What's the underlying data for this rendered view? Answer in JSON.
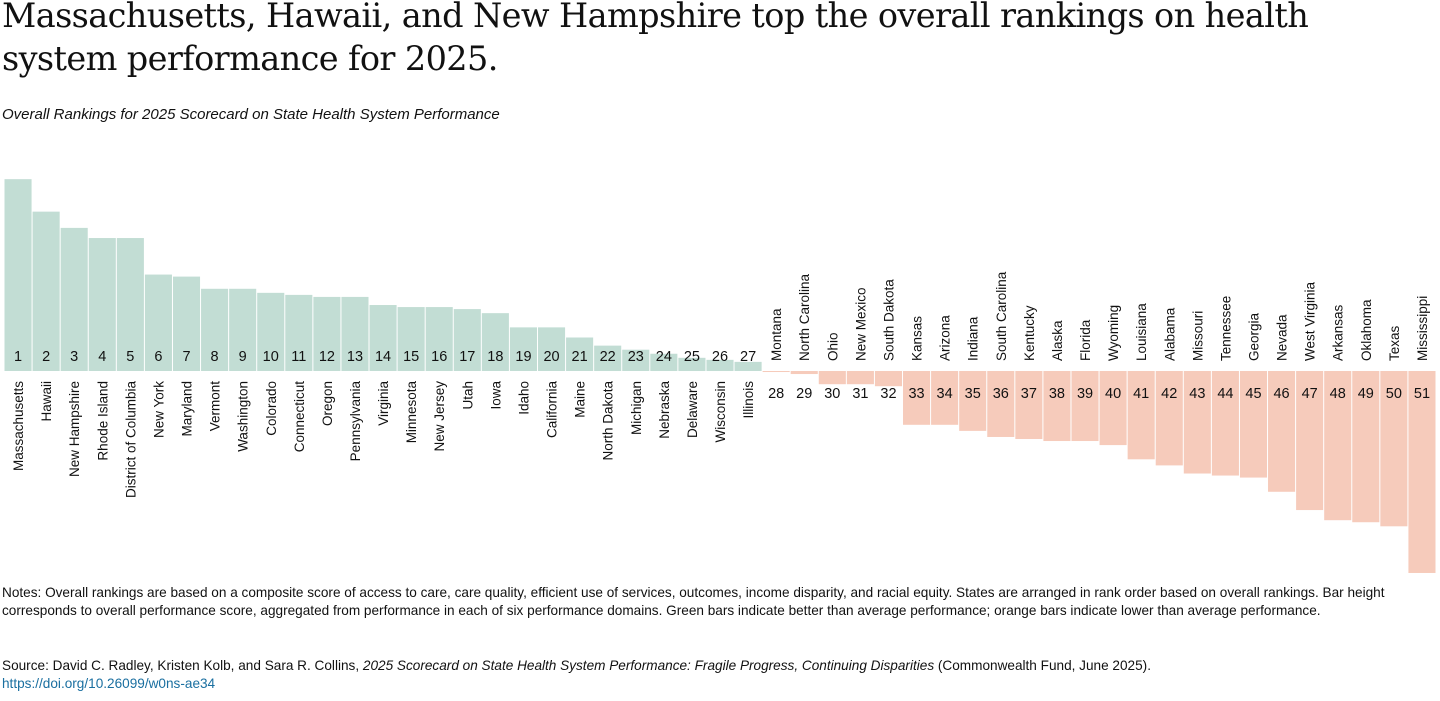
{
  "title": "Massachusetts, Hawaii, and New Hampshire top the overall rankings on health system performance for 2025.",
  "subtitle": "Overall Rankings for 2025 Scorecard on State Health System Performance",
  "notes": "Notes: Overall rankings are based on a composite score of access to care, care quality, efficient use of services, outcomes, income disparity, and racial equity. States are arranged in rank order based on overall rankings. Bar height corresponds to overall performance score, aggregated from performance in each of six performance domains. Green bars indicate better than average performance; orange bars indicate lower than average performance.",
  "source": {
    "prefix": "Source: David C. Radley, Kristen Kolb, and Sara R. Collins, ",
    "italic": "2025 Scorecard on State Health System Performance: Fragile Progress, Continuing Disparities",
    "suffix": " (Commonwealth Fund, June 2025).",
    "link": "https://doi.org/10.26099/w0ns-ae34"
  },
  "colors": {
    "above_average": "#c2ddd4",
    "below_average": "#f6cbbb"
  },
  "chart_data": {
    "type": "bar",
    "title": "Overall Rankings for 2025 Scorecard on State Health System Performance",
    "xlabel": "",
    "ylabel": "",
    "ylim": [
      -2.0,
      1.9
    ],
    "categories": [
      "Massachusetts",
      "Hawaii",
      "New Hampshire",
      "Rhode Island",
      "District of Columbia",
      "New York",
      "Maryland",
      "Vermont",
      "Washington",
      "Colorado",
      "Connecticut",
      "Oregon",
      "Pennsylvania",
      "Virginia",
      "Minnesota",
      "New Jersey",
      "Utah",
      "Iowa",
      "Idaho",
      "California",
      "Maine",
      "North Dakota",
      "Michigan",
      "Nebraska",
      "Delaware",
      "Wisconsin",
      "Illinois",
      "Montana",
      "North Carolina",
      "Ohio",
      "New Mexico",
      "South Dakota",
      "Kansas",
      "Arizona",
      "Indiana",
      "South Carolina",
      "Kentucky",
      "Alaska",
      "Florida",
      "Wyoming",
      "Louisiana",
      "Alabama",
      "Missouri",
      "Tennessee",
      "Georgia",
      "Nevada",
      "West Virginia",
      "Arkansas",
      "Oklahoma",
      "Texas",
      "Mississippi"
    ],
    "ranks": [
      "1",
      "2",
      "3",
      "4",
      "5",
      "6",
      "7",
      "8",
      "9",
      "10",
      "11",
      "12",
      "13",
      "14",
      "15",
      "16",
      "17",
      "18",
      "19",
      "20",
      "21",
      "22",
      "23",
      "24",
      "25",
      "26",
      "27",
      "28",
      "29",
      "30",
      "31",
      "32",
      "33",
      "34",
      "35",
      "36",
      "37",
      "38",
      "39",
      "40",
      "41",
      "42",
      "43",
      "44",
      "45",
      "46",
      "47",
      "48",
      "49",
      "50",
      "51"
    ],
    "values": [
      1.89,
      1.57,
      1.41,
      1.31,
      1.31,
      0.95,
      0.93,
      0.81,
      0.81,
      0.77,
      0.75,
      0.73,
      0.73,
      0.65,
      0.63,
      0.63,
      0.61,
      0.57,
      0.43,
      0.43,
      0.33,
      0.25,
      0.21,
      0.17,
      0.13,
      0.11,
      0.09,
      -0.01,
      -0.03,
      -0.13,
      -0.13,
      -0.15,
      -0.53,
      -0.53,
      -0.59,
      -0.65,
      -0.67,
      -0.69,
      -0.69,
      -0.73,
      -0.87,
      -0.93,
      -1.01,
      -1.03,
      -1.05,
      -1.19,
      -1.37,
      -1.47,
      -1.49,
      -1.53,
      -1.99
    ]
  }
}
